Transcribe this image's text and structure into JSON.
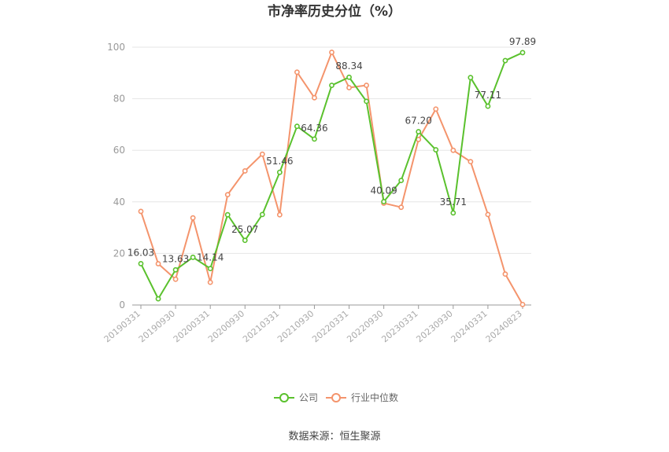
{
  "chart_data": {
    "type": "line",
    "title": "市净率历史分位（%）",
    "source": "数据来源：恒生聚源",
    "ylim": [
      0,
      100
    ],
    "y_ticks": [
      0,
      20,
      40,
      60,
      80,
      100
    ],
    "grid": true,
    "legend_position": "bottom",
    "colors": {
      "company": "#5ac12d",
      "industry": "#f4946c"
    },
    "x": [
      "20190331",
      "20190630",
      "20190930",
      "20191231",
      "20200331",
      "20200630",
      "20200930",
      "20201231",
      "20210331",
      "20210630",
      "20210930",
      "20211231",
      "20220331",
      "20220630",
      "20220930",
      "20221231",
      "20230331",
      "20230630",
      "20230930",
      "20231231",
      "20240331",
      "20240630",
      "20240823"
    ],
    "x_tick_labels": [
      "20190331",
      "20190930",
      "20200331",
      "20200930",
      "20210331",
      "20210930",
      "20220331",
      "20220930",
      "20230331",
      "20230930",
      "20240331",
      "20240823"
    ],
    "series": [
      {
        "name": "公司",
        "values": [
          16.03,
          2.4,
          13.63,
          18.5,
          14.14,
          35.0,
          25.07,
          35.1,
          51.46,
          69.3,
          64.36,
          85.2,
          88.34,
          79.0,
          40.09,
          48.3,
          67.2,
          60.2,
          35.71,
          88.2,
          77.11,
          94.8,
          97.89
        ],
        "labels": [
          "16.03",
          "",
          "13.63",
          "",
          "14.14",
          "",
          "25.07",
          "",
          "51.46",
          "",
          "64.36",
          "",
          "88.34",
          "",
          "40.09",
          "",
          "67.20",
          "",
          "35.71",
          "",
          "77.11",
          "",
          "97.89"
        ]
      },
      {
        "name": "行业中位数",
        "values": [
          36.3,
          16.0,
          10.0,
          33.8,
          8.8,
          42.8,
          52.0,
          58.5,
          35.0,
          90.3,
          80.4,
          98.0,
          84.3,
          85.2,
          39.5,
          37.9,
          64.2,
          76.0,
          60.0,
          55.6,
          35.1,
          12.0,
          0.2
        ]
      }
    ]
  }
}
